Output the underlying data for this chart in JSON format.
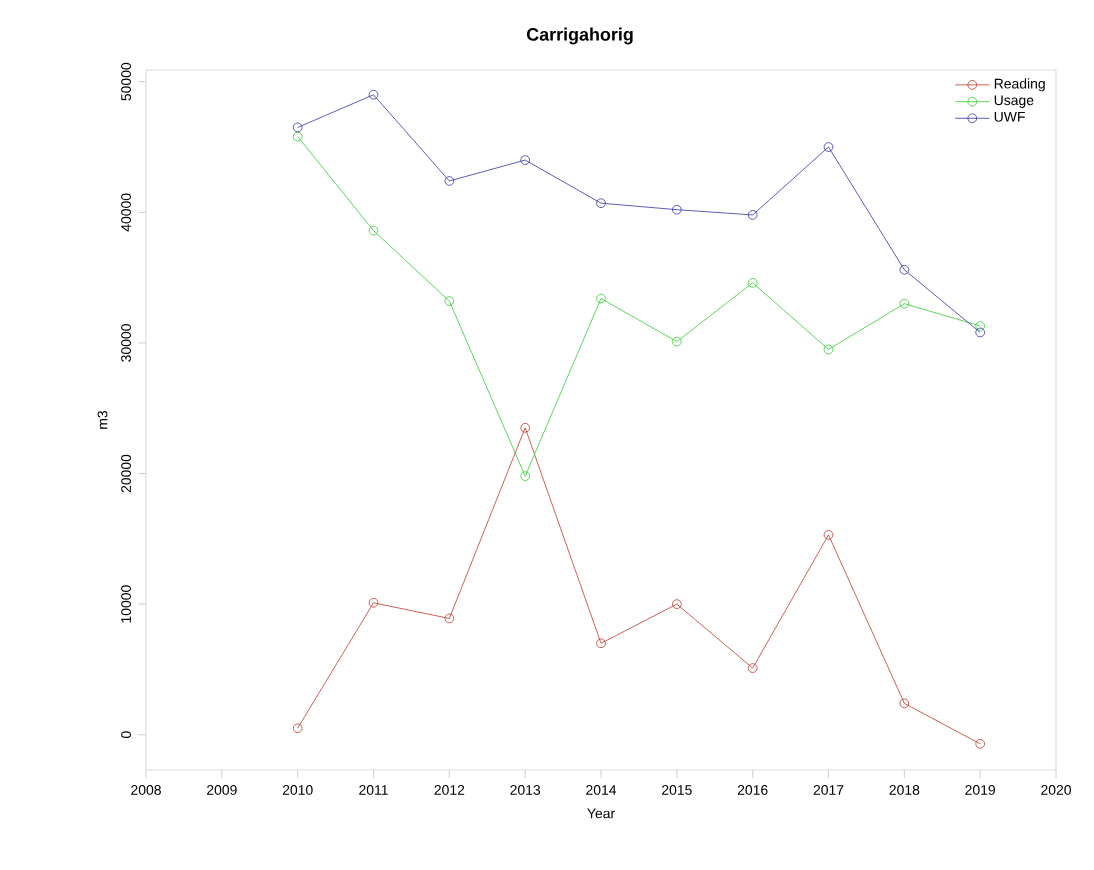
{
  "chart_data": {
    "type": "line",
    "title": "Carrigahorig",
    "xlabel": "Year",
    "ylabel": "m3",
    "x": [
      2010,
      2011,
      2012,
      2013,
      2014,
      2015,
      2016,
      2017,
      2018,
      2019
    ],
    "series": [
      {
        "name": "Reading",
        "color": "#c0392b",
        "values": [
          500,
          10100,
          8900,
          23500,
          7000,
          10000,
          5100,
          15300,
          2400,
          -700
        ]
      },
      {
        "name": "Usage",
        "color": "#33cc33",
        "values": [
          45800,
          38600,
          33200,
          19800,
          33400,
          30100,
          34600,
          29500,
          33000,
          31300
        ]
      },
      {
        "name": "UWF",
        "color": "#3333aa",
        "values": [
          46500,
          49000,
          42400,
          44000,
          40700,
          40200,
          39800,
          45000,
          35600,
          30800
        ]
      }
    ],
    "xlim": [
      2008,
      2020
    ],
    "ylim": [
      -2700,
      50900
    ],
    "xticks": [
      2008,
      2009,
      2010,
      2011,
      2012,
      2013,
      2014,
      2015,
      2016,
      2017,
      2018,
      2019,
      2020
    ],
    "yticks": [
      0,
      10000,
      20000,
      30000,
      40000,
      50000
    ],
    "marker": "circle",
    "line_style": "solid",
    "legend": "top right"
  }
}
